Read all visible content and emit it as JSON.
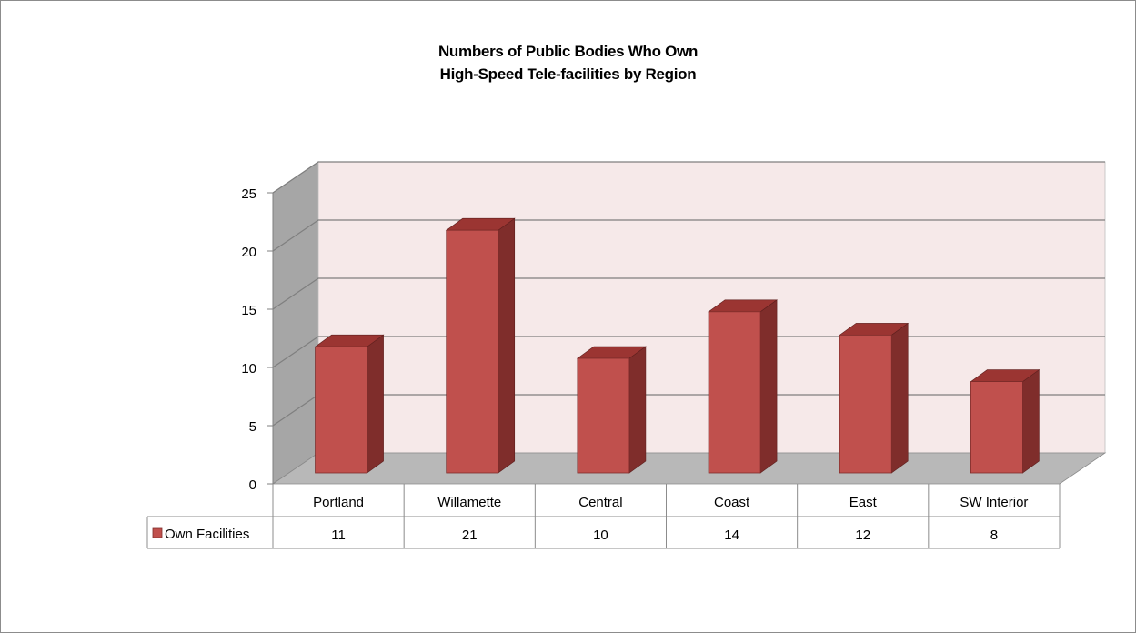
{
  "chart_data": {
    "type": "bar",
    "style": "3d-column",
    "title_lines": [
      "Numbers of Public Bodies Who Own",
      "High-Speed Tele-facilities by Region"
    ],
    "categories": [
      "Portland",
      "Willamette",
      "Central",
      "Coast",
      "East",
      "SW Interior"
    ],
    "series": [
      {
        "name": "Own Facilities",
        "values": [
          11,
          21,
          10,
          14,
          12,
          8
        ]
      }
    ],
    "y_ticks": [
      0,
      5,
      10,
      15,
      20,
      25
    ],
    "ylim": [
      0,
      25
    ],
    "grid": true,
    "legend": "data-table-left",
    "data_table": true,
    "colors": {
      "bar_front": "#c0504d",
      "bar_side": "#7f2d2b",
      "bar_top": "#9b3532",
      "back_wall": "#f6e9e9",
      "side_wall": "#a6a6a6",
      "floor": "#b8b8b8"
    }
  }
}
